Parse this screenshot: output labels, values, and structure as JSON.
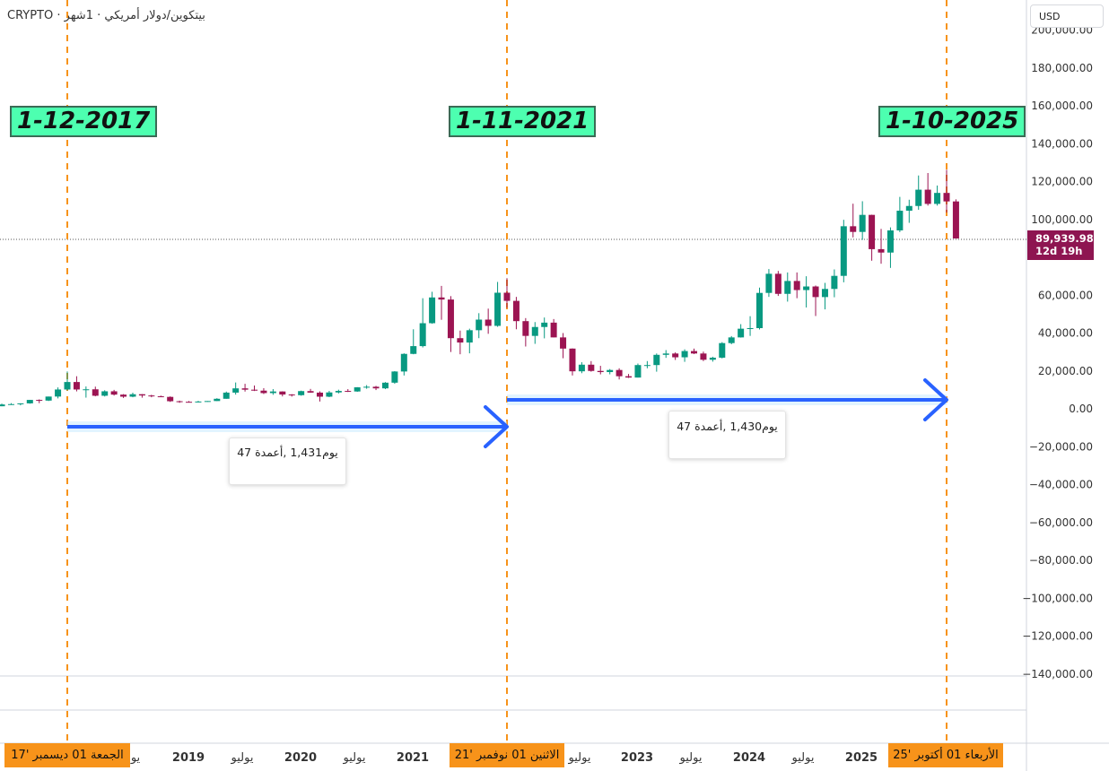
{
  "header": {
    "symbol_text": "CRYPTO · بيتكوين/دولار أمريكي · 1شهر"
  },
  "currency_button": "USD",
  "last_price": {
    "value": "89,939.98",
    "countdown": "12d 19h"
  },
  "date_labels": [
    "1-12-2017",
    "1-11-2021",
    "1-10-2025"
  ],
  "measures": [
    {
      "text": "يوم1,431 ,أعمدة 47"
    },
    {
      "text": "يوم1,430 ,أعمدة 47"
    }
  ],
  "y_axis_labels": [
    "200,000.00",
    "180,000.00",
    "160,000.00",
    "140,000.00",
    "120,000.00",
    "100,000.00",
    "60,000.00",
    "40,000.00",
    "20,000.00",
    "0.00",
    "−20,000.00",
    "−40,000.00",
    "−60,000.00",
    "−80,000.00",
    "−100,000.00",
    "−120,000.00",
    "−140,000.00"
  ],
  "x_axis_labels": [
    "يو",
    "2019",
    "يوليو",
    "2020",
    "يوليو",
    "2021",
    "يوليو",
    "2023",
    "يوليو",
    "2024",
    "يوليو",
    "2025"
  ],
  "x_axis_highlights": [
    "الجمعة 01 ديسمبر '17",
    "الاثنين 01 نوفمبر '21",
    "الأربعاء 01 أكتوبر '25"
  ],
  "colors": {
    "up": "#089981",
    "down": "#9c1452",
    "vline": "#f7931a",
    "arrow": "#2962ff",
    "label_bg": "#4dffb0",
    "price_tag": "#8e1551"
  },
  "chart_data": {
    "type": "candlestick",
    "interval": "1 month",
    "ylim": [
      -140000,
      200000
    ],
    "candles": [
      {
        "date": "2017-01",
        "o": 700,
        "h": 1150,
        "l": 750,
        "c": 970
      },
      {
        "date": "2017-02",
        "o": 970,
        "h": 1200,
        "l": 920,
        "c": 1190
      },
      {
        "date": "2017-03",
        "o": 1190,
        "h": 1290,
        "l": 890,
        "c": 1080
      },
      {
        "date": "2017-04",
        "o": 1080,
        "h": 1350,
        "l": 1080,
        "c": 1350
      },
      {
        "date": "2017-05",
        "o": 1350,
        "h": 2760,
        "l": 1350,
        "c": 2300
      },
      {
        "date": "2017-06",
        "o": 2300,
        "h": 2980,
        "l": 2180,
        "c": 2480
      },
      {
        "date": "2017-07",
        "o": 2480,
        "h": 2920,
        "l": 1830,
        "c": 2875
      },
      {
        "date": "2017-08",
        "o": 2875,
        "h": 4700,
        "l": 2700,
        "c": 4700
      },
      {
        "date": "2017-09",
        "o": 4700,
        "h": 4980,
        "l": 2980,
        "c": 4340
      },
      {
        "date": "2017-10",
        "o": 4340,
        "h": 6470,
        "l": 4110,
        "c": 6470
      },
      {
        "date": "2017-11",
        "o": 6470,
        "h": 11300,
        "l": 5500,
        "c": 10200
      },
      {
        "date": "2017-12",
        "o": 10200,
        "h": 19700,
        "l": 9700,
        "c": 14150
      },
      {
        "date": "2018-01",
        "o": 14150,
        "h": 17200,
        "l": 9200,
        "c": 10200
      },
      {
        "date": "2018-02",
        "o": 10200,
        "h": 11800,
        "l": 5900,
        "c": 10300
      },
      {
        "date": "2018-03",
        "o": 10300,
        "h": 11700,
        "l": 6600,
        "c": 6900
      },
      {
        "date": "2018-04",
        "o": 6900,
        "h": 9800,
        "l": 6500,
        "c": 9250
      },
      {
        "date": "2018-05",
        "o": 9250,
        "h": 10000,
        "l": 7000,
        "c": 7500
      },
      {
        "date": "2018-06",
        "o": 7500,
        "h": 7750,
        "l": 5750,
        "c": 6400
      },
      {
        "date": "2018-07",
        "o": 6400,
        "h": 8500,
        "l": 6100,
        "c": 7700
      },
      {
        "date": "2018-08",
        "o": 7700,
        "h": 7750,
        "l": 5880,
        "c": 7030
      },
      {
        "date": "2018-09",
        "o": 7030,
        "h": 7400,
        "l": 6100,
        "c": 6600
      },
      {
        "date": "2018-10",
        "o": 6600,
        "h": 7000,
        "l": 6200,
        "c": 6300
      },
      {
        "date": "2018-11",
        "o": 6300,
        "h": 6550,
        "l": 3650,
        "c": 4000
      },
      {
        "date": "2018-12",
        "o": 4000,
        "h": 4300,
        "l": 3150,
        "c": 3700
      },
      {
        "date": "2019-01",
        "o": 3700,
        "h": 4100,
        "l": 3350,
        "c": 3450
      },
      {
        "date": "2019-02",
        "o": 3450,
        "h": 4200,
        "l": 3400,
        "c": 3850
      },
      {
        "date": "2019-03",
        "o": 3850,
        "h": 4100,
        "l": 3700,
        "c": 4100
      },
      {
        "date": "2019-04",
        "o": 4100,
        "h": 5600,
        "l": 4100,
        "c": 5300
      },
      {
        "date": "2019-05",
        "o": 5300,
        "h": 9100,
        "l": 5300,
        "c": 8550
      },
      {
        "date": "2019-06",
        "o": 8550,
        "h": 13900,
        "l": 7500,
        "c": 10800
      },
      {
        "date": "2019-07",
        "o": 10800,
        "h": 13200,
        "l": 9100,
        "c": 10100
      },
      {
        "date": "2019-08",
        "o": 10100,
        "h": 12300,
        "l": 9400,
        "c": 9600
      },
      {
        "date": "2019-09",
        "o": 9600,
        "h": 10900,
        "l": 7800,
        "c": 8300
      },
      {
        "date": "2019-10",
        "o": 8300,
        "h": 10400,
        "l": 7400,
        "c": 9150
      },
      {
        "date": "2019-11",
        "o": 9150,
        "h": 9250,
        "l": 6550,
        "c": 7550
      },
      {
        "date": "2019-12",
        "o": 7550,
        "h": 7750,
        "l": 6450,
        "c": 7200
      },
      {
        "date": "2020-01",
        "o": 7200,
        "h": 9600,
        "l": 6900,
        "c": 9350
      },
      {
        "date": "2020-02",
        "o": 9350,
        "h": 10500,
        "l": 8450,
        "c": 8550
      },
      {
        "date": "2020-03",
        "o": 8550,
        "h": 9200,
        "l": 3850,
        "c": 6400
      },
      {
        "date": "2020-04",
        "o": 6400,
        "h": 9450,
        "l": 6150,
        "c": 8650
      },
      {
        "date": "2020-05",
        "o": 8650,
        "h": 10100,
        "l": 8100,
        "c": 9450
      },
      {
        "date": "2020-06",
        "o": 9450,
        "h": 10400,
        "l": 8900,
        "c": 9150
      },
      {
        "date": "2020-07",
        "o": 9150,
        "h": 11450,
        "l": 8950,
        "c": 11350
      },
      {
        "date": "2020-08",
        "o": 11350,
        "h": 12500,
        "l": 10600,
        "c": 11650
      },
      {
        "date": "2020-09",
        "o": 11650,
        "h": 12100,
        "l": 9900,
        "c": 10800
      },
      {
        "date": "2020-10",
        "o": 10800,
        "h": 14100,
        "l": 10400,
        "c": 13800
      },
      {
        "date": "2020-11",
        "o": 13800,
        "h": 19900,
        "l": 13200,
        "c": 19700
      },
      {
        "date": "2020-12",
        "o": 19700,
        "h": 29300,
        "l": 17600,
        "c": 29000
      },
      {
        "date": "2021-01",
        "o": 29000,
        "h": 42000,
        "l": 28800,
        "c": 33100
      },
      {
        "date": "2021-02",
        "o": 33100,
        "h": 58400,
        "l": 32400,
        "c": 45200
      },
      {
        "date": "2021-03",
        "o": 45200,
        "h": 61800,
        "l": 44900,
        "c": 58800
      },
      {
        "date": "2021-04",
        "o": 58800,
        "h": 64900,
        "l": 47000,
        "c": 57700
      },
      {
        "date": "2021-05",
        "o": 57700,
        "h": 59500,
        "l": 30000,
        "c": 37300
      },
      {
        "date": "2021-06",
        "o": 37300,
        "h": 41300,
        "l": 28800,
        "c": 35000
      },
      {
        "date": "2021-07",
        "o": 35000,
        "h": 42300,
        "l": 29300,
        "c": 41500
      },
      {
        "date": "2021-08",
        "o": 41500,
        "h": 50500,
        "l": 37300,
        "c": 47100
      },
      {
        "date": "2021-09",
        "o": 47100,
        "h": 52900,
        "l": 39600,
        "c": 43800
      },
      {
        "date": "2021-10",
        "o": 43800,
        "h": 67000,
        "l": 43300,
        "c": 61300
      },
      {
        "date": "2021-11",
        "o": 61300,
        "h": 69000,
        "l": 53300,
        "c": 57000
      },
      {
        "date": "2021-12",
        "o": 57000,
        "h": 59100,
        "l": 42000,
        "c": 46300
      },
      {
        "date": "2022-01",
        "o": 46300,
        "h": 47900,
        "l": 32900,
        "c": 38500
      },
      {
        "date": "2022-02",
        "o": 38500,
        "h": 45800,
        "l": 34300,
        "c": 43200
      },
      {
        "date": "2022-03",
        "o": 43200,
        "h": 48200,
        "l": 37200,
        "c": 45500
      },
      {
        "date": "2022-04",
        "o": 45500,
        "h": 47400,
        "l": 37700,
        "c": 37700
      },
      {
        "date": "2022-05",
        "o": 37700,
        "h": 40000,
        "l": 26700,
        "c": 31800
      },
      {
        "date": "2022-06",
        "o": 31800,
        "h": 31900,
        "l": 17600,
        "c": 19800
      },
      {
        "date": "2022-07",
        "o": 19800,
        "h": 24600,
        "l": 18800,
        "c": 23300
      },
      {
        "date": "2022-08",
        "o": 23300,
        "h": 25200,
        "l": 19600,
        "c": 20000
      },
      {
        "date": "2022-09",
        "o": 20000,
        "h": 22700,
        "l": 18200,
        "c": 19400
      },
      {
        "date": "2022-10",
        "o": 19400,
        "h": 21000,
        "l": 18200,
        "c": 20500
      },
      {
        "date": "2022-11",
        "o": 20500,
        "h": 21400,
        "l": 15500,
        "c": 17200
      },
      {
        "date": "2022-12",
        "o": 17200,
        "h": 18400,
        "l": 16300,
        "c": 16500
      },
      {
        "date": "2023-01",
        "o": 16500,
        "h": 23900,
        "l": 16500,
        "c": 23100
      },
      {
        "date": "2023-02",
        "o": 23100,
        "h": 25200,
        "l": 21400,
        "c": 23100
      },
      {
        "date": "2023-03",
        "o": 23100,
        "h": 29200,
        "l": 19600,
        "c": 28500
      },
      {
        "date": "2023-04",
        "o": 28500,
        "h": 31000,
        "l": 26900,
        "c": 29200
      },
      {
        "date": "2023-05",
        "o": 29200,
        "h": 29800,
        "l": 25800,
        "c": 27200
      },
      {
        "date": "2023-06",
        "o": 27200,
        "h": 31400,
        "l": 24800,
        "c": 30500
      },
      {
        "date": "2023-07",
        "o": 30500,
        "h": 31800,
        "l": 28900,
        "c": 29200
      },
      {
        "date": "2023-08",
        "o": 29200,
        "h": 30200,
        "l": 25200,
        "c": 25900
      },
      {
        "date": "2023-09",
        "o": 25900,
        "h": 27500,
        "l": 24900,
        "c": 27000
      },
      {
        "date": "2023-10",
        "o": 27000,
        "h": 35200,
        "l": 26600,
        "c": 34700
      },
      {
        "date": "2023-11",
        "o": 34700,
        "h": 38400,
        "l": 34100,
        "c": 37700
      },
      {
        "date": "2023-12",
        "o": 37700,
        "h": 44700,
        "l": 37600,
        "c": 42300
      },
      {
        "date": "2024-01",
        "o": 42300,
        "h": 48900,
        "l": 38500,
        "c": 42600
      },
      {
        "date": "2024-02",
        "o": 42600,
        "h": 64000,
        "l": 41900,
        "c": 61200
      },
      {
        "date": "2024-03",
        "o": 61200,
        "h": 73800,
        "l": 59100,
        "c": 71300
      },
      {
        "date": "2024-04",
        "o": 71300,
        "h": 72800,
        "l": 59600,
        "c": 60700
      },
      {
        "date": "2024-05",
        "o": 60700,
        "h": 72000,
        "l": 56600,
        "c": 67500
      },
      {
        "date": "2024-06",
        "o": 67500,
        "h": 72000,
        "l": 58400,
        "c": 62700
      },
      {
        "date": "2024-07",
        "o": 62700,
        "h": 70000,
        "l": 53500,
        "c": 64600
      },
      {
        "date": "2024-08",
        "o": 64600,
        "h": 65100,
        "l": 49000,
        "c": 59000
      },
      {
        "date": "2024-09",
        "o": 59000,
        "h": 66500,
        "l": 52500,
        "c": 63300
      },
      {
        "date": "2024-10",
        "o": 63300,
        "h": 73600,
        "l": 58900,
        "c": 70200
      },
      {
        "date": "2024-11",
        "o": 70200,
        "h": 99800,
        "l": 66800,
        "c": 96400
      },
      {
        "date": "2024-12",
        "o": 96400,
        "h": 108300,
        "l": 90500,
        "c": 93400
      },
      {
        "date": "2025-01",
        "o": 93400,
        "h": 109600,
        "l": 89200,
        "c": 102400
      },
      {
        "date": "2025-02",
        "o": 102400,
        "h": 102500,
        "l": 78200,
        "c": 84300
      },
      {
        "date": "2025-03",
        "o": 84300,
        "h": 95000,
        "l": 76600,
        "c": 82500
      },
      {
        "date": "2025-04",
        "o": 82500,
        "h": 95800,
        "l": 74400,
        "c": 94200
      },
      {
        "date": "2025-05",
        "o": 94200,
        "h": 111900,
        "l": 93300,
        "c": 104600
      },
      {
        "date": "2025-06",
        "o": 104600,
        "h": 110400,
        "l": 98200,
        "c": 107100
      },
      {
        "date": "2025-07",
        "o": 107100,
        "h": 123200,
        "l": 105100,
        "c": 115700
      },
      {
        "date": "2025-08",
        "o": 115700,
        "h": 124500,
        "l": 107300,
        "c": 108200
      },
      {
        "date": "2025-09",
        "o": 108200,
        "h": 117900,
        "l": 107300,
        "c": 114000
      },
      {
        "date": "2025-10",
        "o": 114000,
        "h": 126200,
        "l": 103600,
        "c": 109500
      },
      {
        "date": "2025-11",
        "o": 109500,
        "h": 110600,
        "l": 89900,
        "c": 89940
      }
    ],
    "vertical_markers": [
      "2017-12-01",
      "2021-11-01",
      "2025-10-01"
    ],
    "measurements": [
      {
        "from": "2017-12-01",
        "to": "2021-11-01",
        "days": 1431,
        "bars": 47
      },
      {
        "from": "2021-11-01",
        "to": "2025-10-01",
        "days": 1430,
        "bars": 47
      }
    ]
  }
}
